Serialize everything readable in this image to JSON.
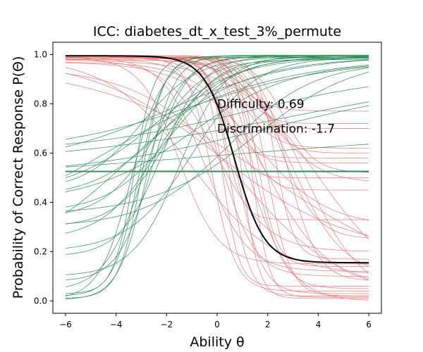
{
  "chart_data": {
    "type": "line",
    "title": "ICC: diabetes_dt_x_test_3%_permute",
    "xlabel": "Ability θ",
    "ylabel": "Probability of Correct Response P(Θ)",
    "xlim": [
      -6.5,
      6.5
    ],
    "ylim": [
      -0.05,
      1.05
    ],
    "x_ticks": [
      -6,
      -4,
      -2,
      0,
      2,
      4,
      6
    ],
    "y_ticks": [
      0.0,
      0.2,
      0.4,
      0.6,
      0.8,
      1.0
    ],
    "x_tick_labels": [
      "−6",
      "−4",
      "−2",
      "0",
      "2",
      "4",
      "6"
    ],
    "y_tick_labels": [
      "0.0",
      "0.2",
      "0.4",
      "0.6",
      "0.8",
      "1.0"
    ],
    "grid": false,
    "annotations": [
      {
        "text": "Difficulty: 0.69",
        "x": 0.0,
        "y": 0.8
      },
      {
        "text": "Discrimination: -1.7",
        "x": 0.0,
        "y": 0.7
      }
    ],
    "colors": {
      "positive": "#2e8b57",
      "negative": "#e8797a",
      "highlight": "#000000"
    },
    "highlight_curve": {
      "difficulty": 0.69,
      "discrimination": -1.7,
      "guessing": 0.155,
      "upper": 0.995
    },
    "series_groups": [
      {
        "group": "positive_discrimination",
        "color": "#2e8b57",
        "curves": [
          {
            "a": 2.2,
            "b": -3.0,
            "c": 0.01,
            "d": 0.995
          },
          {
            "a": 2.0,
            "b": -3.1,
            "c": 0.02,
            "d": 0.995
          },
          {
            "a": 1.8,
            "b": -2.8,
            "c": 0.005,
            "d": 0.998
          },
          {
            "a": 2.5,
            "b": -3.3,
            "c": 0.03,
            "d": 0.99
          },
          {
            "a": 1.5,
            "b": -2.6,
            "c": 0.08,
            "d": 0.99
          },
          {
            "a": 1.2,
            "b": -2.2,
            "c": 0.18,
            "d": 0.995
          },
          {
            "a": 1.0,
            "b": -2.0,
            "c": 0.3,
            "d": 0.99
          },
          {
            "a": 1.0,
            "b": -2.5,
            "c": 0.34,
            "d": 0.98
          },
          {
            "a": 0.8,
            "b": -1.8,
            "c": 0.36,
            "d": 0.99
          },
          {
            "a": 0.7,
            "b": -2.0,
            "c": 0.42,
            "d": 0.995
          },
          {
            "a": 0.6,
            "b": -2.5,
            "c": 0.44,
            "d": 0.99
          },
          {
            "a": 0.9,
            "b": -3.0,
            "c": 0.45,
            "d": 0.99
          },
          {
            "a": 0.5,
            "b": -1.0,
            "c": 0.4,
            "d": 0.97
          },
          {
            "a": 0.4,
            "b": -2.0,
            "c": 0.55,
            "d": 0.995
          },
          {
            "a": 0.35,
            "b": -1.0,
            "c": 0.6,
            "d": 0.98
          },
          {
            "a": 0.3,
            "b": 1.0,
            "c": 0.6,
            "d": 0.93
          },
          {
            "a": 0.25,
            "b": 2.0,
            "c": 0.5,
            "d": 0.9
          },
          {
            "a": 0.2,
            "b": 3.0,
            "c": 0.55,
            "d": 0.95
          },
          {
            "a": 1.1,
            "b": -1.5,
            "c": 0.1,
            "d": 0.995
          },
          {
            "a": 0.8,
            "b": -1.0,
            "c": 0.2,
            "d": 0.99
          },
          {
            "a": 0.6,
            "b": 0.5,
            "c": 0.3,
            "d": 0.97
          },
          {
            "a": 0.5,
            "b": 1.5,
            "c": 0.35,
            "d": 0.99
          },
          {
            "a": 0.3,
            "b": -4.5,
            "c": 0.2,
            "d": 0.99
          },
          {
            "a": 0.45,
            "b": -3.5,
            "c": 0.15,
            "d": 0.99
          },
          {
            "a": 1.6,
            "b": -3.4,
            "c": 0.005,
            "d": 0.99
          },
          {
            "a": 0.15,
            "b": 0.0,
            "c": 0.48,
            "d": 0.7
          },
          {
            "a": 0.0,
            "b": 0.0,
            "c": 0.525,
            "d": 0.525
          },
          {
            "a": 0.01,
            "b": 0.0,
            "c": 0.52,
            "d": 0.535
          },
          {
            "a": 0.9,
            "b": -2.3,
            "c": 0.25,
            "d": 0.985
          },
          {
            "a": 1.3,
            "b": -2.9,
            "c": 0.04,
            "d": 0.995
          }
        ]
      },
      {
        "group": "negative_discrimination",
        "color": "#e8797a",
        "curves": [
          {
            "a": -2.5,
            "b": 0.5,
            "c": 0.02,
            "d": 0.99
          },
          {
            "a": -2.0,
            "b": 0.8,
            "c": 0.03,
            "d": 0.99
          },
          {
            "a": -3.0,
            "b": 1.0,
            "c": 0.01,
            "d": 0.995
          },
          {
            "a": -1.8,
            "b": 1.5,
            "c": 0.05,
            "d": 0.985
          },
          {
            "a": -2.2,
            "b": 2.0,
            "c": 0.02,
            "d": 0.99
          },
          {
            "a": -1.5,
            "b": 0.2,
            "c": 0.1,
            "d": 0.98
          },
          {
            "a": -1.2,
            "b": -0.5,
            "c": 0.12,
            "d": 0.99
          },
          {
            "a": -1.0,
            "b": 0.0,
            "c": 0.2,
            "d": 0.98
          },
          {
            "a": -2.8,
            "b": 0.3,
            "c": 0.33,
            "d": 0.99
          },
          {
            "a": -2.5,
            "b": 1.2,
            "c": 0.45,
            "d": 0.995
          },
          {
            "a": -3.0,
            "b": 0.6,
            "c": 0.5,
            "d": 0.99
          },
          {
            "a": -2.0,
            "b": 1.8,
            "c": 0.6,
            "d": 0.99
          },
          {
            "a": -1.6,
            "b": 1.0,
            "c": 0.62,
            "d": 0.985
          },
          {
            "a": -2.4,
            "b": 0.9,
            "c": 0.7,
            "d": 0.99
          },
          {
            "a": -1.4,
            "b": 2.5,
            "c": 0.25,
            "d": 0.99
          },
          {
            "a": -1.0,
            "b": 3.0,
            "c": 0.1,
            "d": 0.98
          },
          {
            "a": -0.8,
            "b": 2.0,
            "c": 0.05,
            "d": 0.97
          },
          {
            "a": -0.6,
            "b": -1.0,
            "c": 0.1,
            "d": 0.99
          },
          {
            "a": -0.5,
            "b": 1.0,
            "c": 0.02,
            "d": 0.95
          },
          {
            "a": -1.3,
            "b": -1.5,
            "c": 0.15,
            "d": 0.99
          },
          {
            "a": -3.0,
            "b": 0.2,
            "c": 0.06,
            "d": 0.99
          },
          {
            "a": -2.6,
            "b": 1.6,
            "c": 0.14,
            "d": 0.985
          },
          {
            "a": -1.9,
            "b": 0.4,
            "c": 0.56,
            "d": 0.995
          },
          {
            "a": -1.1,
            "b": 2.2,
            "c": 0.48,
            "d": 0.98
          },
          {
            "a": -0.7,
            "b": 1.5,
            "c": 0.3,
            "d": 0.97
          },
          {
            "a": -2.1,
            "b": -0.2,
            "c": 0.04,
            "d": 0.99
          },
          {
            "a": -1.7,
            "b": 2.8,
            "c": 0.08,
            "d": 0.99
          },
          {
            "a": -0.9,
            "b": 3.5,
            "c": 0.02,
            "d": 0.99
          },
          {
            "a": -2.3,
            "b": 1.1,
            "c": 0.72,
            "d": 0.99
          },
          {
            "a": -1.5,
            "b": 0.7,
            "c": 0.77,
            "d": 0.99
          },
          {
            "a": -0.4,
            "b": 0.0,
            "c": 0.2,
            "d": 0.99
          },
          {
            "a": -0.3,
            "b": 2.0,
            "c": 0.05,
            "d": 0.96
          },
          {
            "a": -2.7,
            "b": 2.3,
            "c": 0.17,
            "d": 0.99
          },
          {
            "a": -1.2,
            "b": 1.3,
            "c": 0.0,
            "d": 0.99
          },
          {
            "a": -3.0,
            "b": 1.4,
            "c": 0.015,
            "d": 0.995
          },
          {
            "a": -2.0,
            "b": 0.1,
            "c": 0.58,
            "d": 0.99
          },
          {
            "a": -1.6,
            "b": 2.6,
            "c": 0.52,
            "d": 0.99
          },
          {
            "a": -0.6,
            "b": 4.0,
            "c": 0.03,
            "d": 0.98
          }
        ]
      }
    ]
  }
}
